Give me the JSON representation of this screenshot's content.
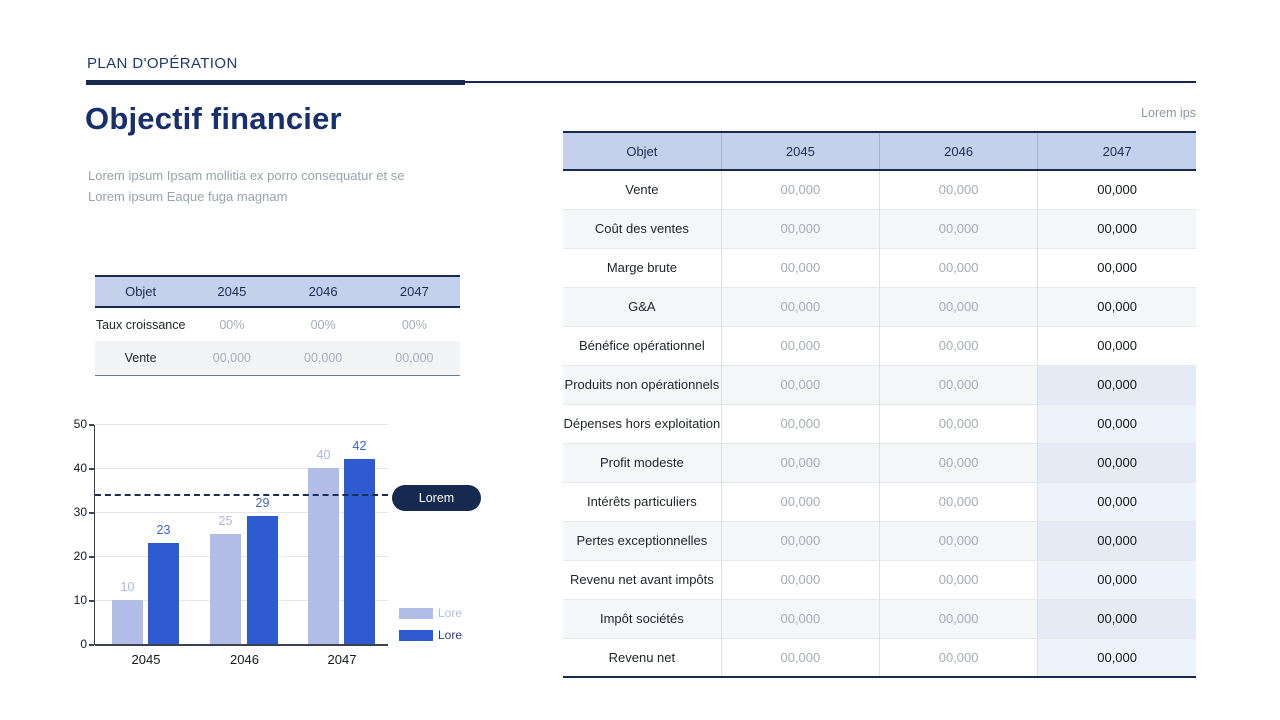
{
  "page": {
    "kicker": "PLAN D'OPÉRATION",
    "title": "Objectif financier",
    "subtitle_line1": "Lorem ipsum Ipsam mollitia ex porro consequatur et se",
    "subtitle_line2": "Lorem ipsum Eaque fuga magnam"
  },
  "colors": {
    "navy": "#16294e",
    "title_navy": "#182f6d",
    "header_band": "#c4d0ec",
    "series_light": "#b1bde7",
    "series_dark": "#2e5cd0",
    "label_light": "#a9b6e6",
    "label_dark": "#3b63cc",
    "legend_dark_text": "#253c85",
    "muted_value": "#a6abb4"
  },
  "small_table": {
    "headers": [
      "Objet",
      "2045",
      "2046",
      "2047"
    ],
    "rows": [
      {
        "label": "Taux croissance",
        "values": [
          "00%",
          "00%",
          "00%"
        ]
      },
      {
        "label": "Vente",
        "values": [
          "00,000",
          "00,000",
          "00,000"
        ]
      }
    ]
  },
  "big_table": {
    "note": "Lorem ips",
    "headers": [
      "Objet",
      "2045",
      "2046",
      "2047"
    ],
    "rows": [
      {
        "label": "Vente",
        "values": [
          "00,000",
          "00,000",
          "00,000"
        ]
      },
      {
        "label": "Coût des ventes",
        "values": [
          "00,000",
          "00,000",
          "00,000"
        ]
      },
      {
        "label": "Marge brute",
        "values": [
          "00,000",
          "00,000",
          "00,000"
        ]
      },
      {
        "label": "G&A",
        "values": [
          "00,000",
          "00,000",
          "00,000"
        ]
      },
      {
        "label": "Bénéfice opérationnel",
        "values": [
          "00,000",
          "00,000",
          "00,000"
        ]
      },
      {
        "label": "Produits non opérationnels",
        "values": [
          "00,000",
          "00,000",
          "00,000"
        ]
      },
      {
        "label": "Dépenses hors exploitation",
        "values": [
          "00,000",
          "00,000",
          "00,000"
        ]
      },
      {
        "label": "Profit modeste",
        "values": [
          "00,000",
          "00,000",
          "00,000"
        ]
      },
      {
        "label": "Intérêts particuliers",
        "values": [
          "00,000",
          "00,000",
          "00,000"
        ]
      },
      {
        "label": "Pertes exceptionnelles",
        "values": [
          "00,000",
          "00,000",
          "00,000"
        ]
      },
      {
        "label": "Revenu net avant impôts",
        "values": [
          "00,000",
          "00,000",
          "00,000"
        ]
      },
      {
        "label": "Impôt sociétés",
        "values": [
          "00,000",
          "00,000",
          "00,000"
        ]
      },
      {
        "label": "Revenu net",
        "values": [
          "00,000",
          "00,000",
          "00,000"
        ]
      }
    ]
  },
  "chart_data": {
    "type": "bar",
    "categories": [
      "2045",
      "2046",
      "2047"
    ],
    "series": [
      {
        "name": "Lore",
        "values": [
          10,
          25,
          40
        ],
        "color": "#b1bde7",
        "label_color": "#a9b6e6"
      },
      {
        "name": "Lore",
        "values": [
          23,
          29,
          42
        ],
        "color": "#2e5cd0",
        "label_color": "#3b63cc"
      }
    ],
    "title": "",
    "xlabel": "",
    "ylabel": "",
    "ylim": [
      0,
      50
    ],
    "yticks": [
      0,
      10,
      20,
      30,
      40,
      50
    ],
    "grid": true,
    "legend_position": "bottom-right",
    "reference_line": {
      "value": 34,
      "style": "dashed",
      "label": "Lorem"
    }
  }
}
